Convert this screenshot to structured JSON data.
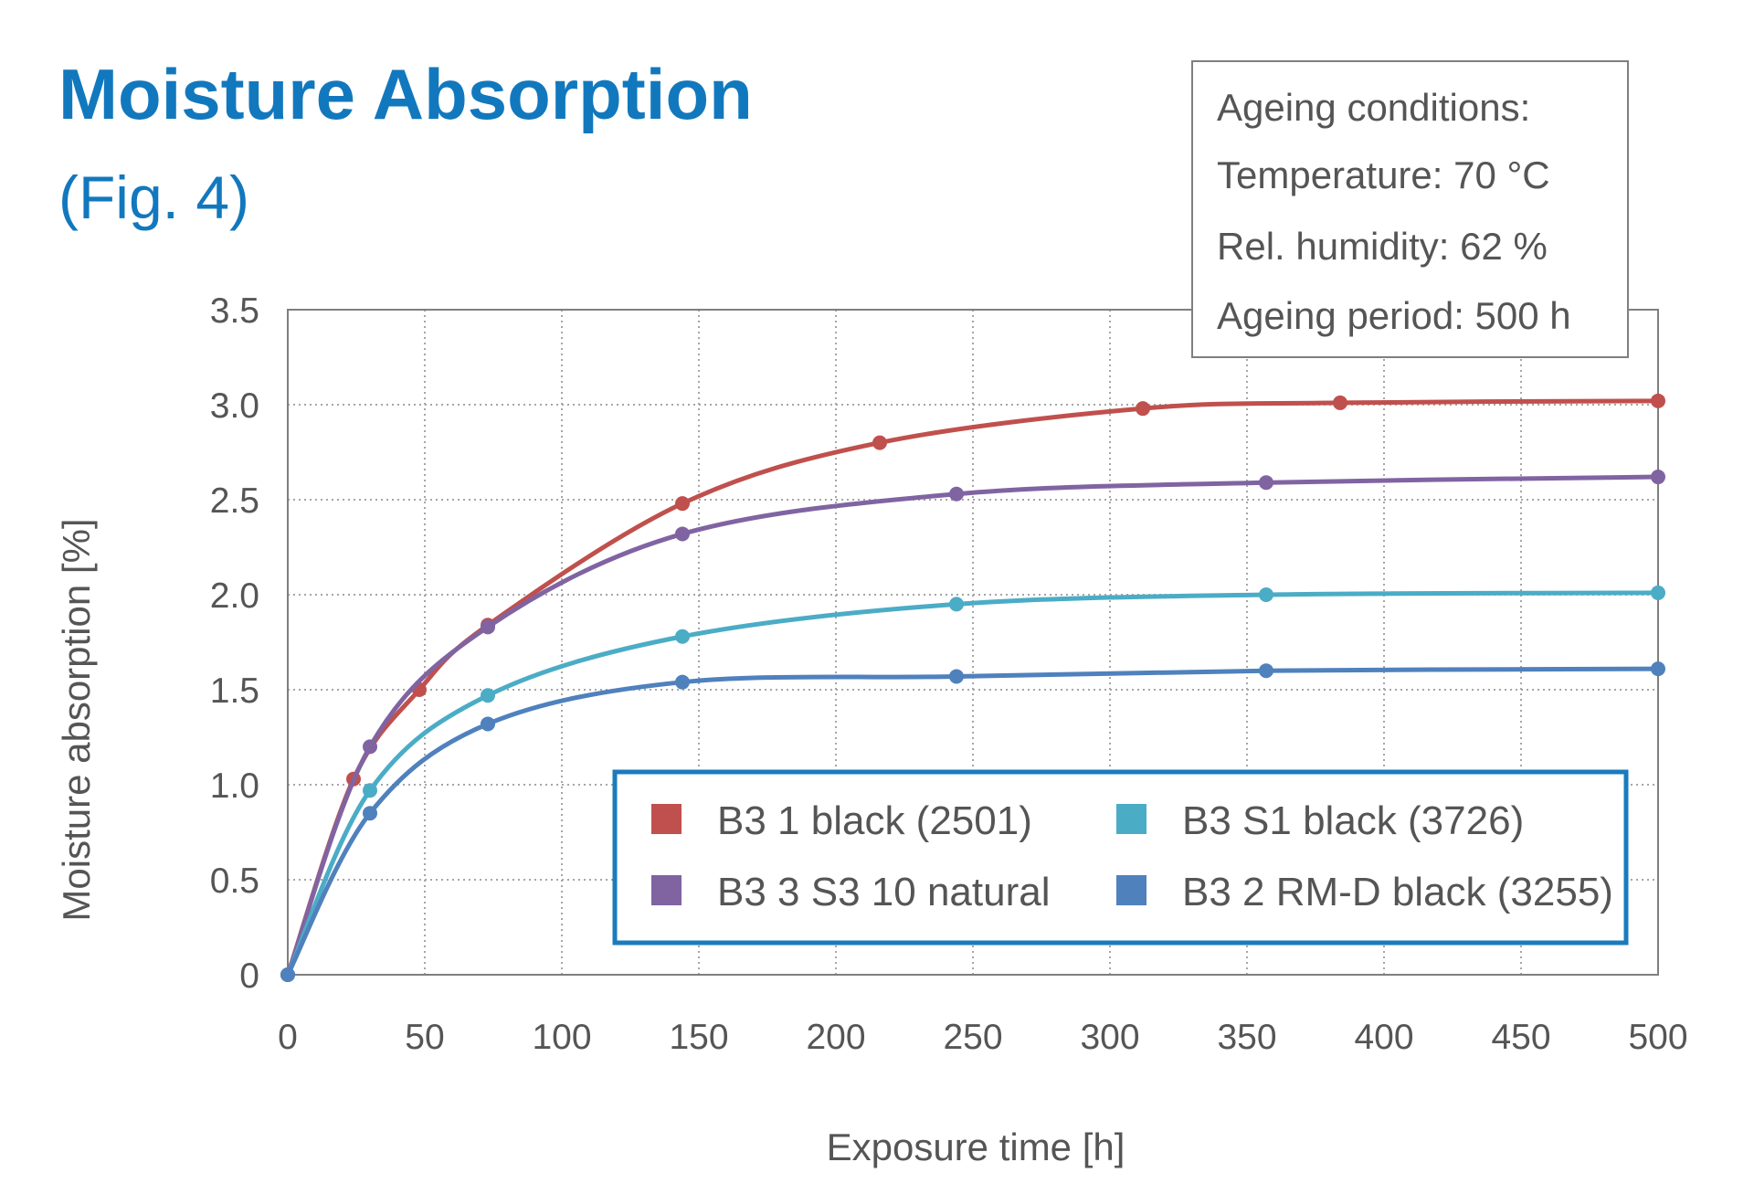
{
  "chart_data": {
    "type": "line",
    "title": "Moisture Absorption",
    "subtitle": "(Fig. 4)",
    "xlabel": "Exposure time [h]",
    "ylabel": "Moisture absorption [%]",
    "xlim": [
      0,
      500
    ],
    "ylim": [
      0,
      3.5
    ],
    "x_ticks": [
      "0",
      "50",
      "100",
      "150",
      "200",
      "250",
      "300",
      "350",
      "400",
      "450",
      "500"
    ],
    "y_ticks": [
      "0",
      "0.5",
      "1.0",
      "1.5",
      "2.0",
      "2.5",
      "3.0",
      "3.5"
    ],
    "grid": "dotted",
    "legend_position": "bottom-right",
    "conditions": {
      "heading": "Ageing conditions:",
      "temperature": "Temperature: 70 °C",
      "humidity": "Rel. humidity: 62 %",
      "period": "Ageing period: 500 h"
    },
    "series": [
      {
        "name": "B3 1 black (2501)",
        "color": "#c0504d",
        "points": [
          [
            0,
            0
          ],
          [
            24,
            1.03
          ],
          [
            48,
            1.5
          ],
          [
            73,
            1.84
          ],
          [
            144,
            2.48
          ],
          [
            216,
            2.8
          ],
          [
            312,
            2.98
          ],
          [
            384,
            3.01
          ],
          [
            500,
            3.02
          ]
        ]
      },
      {
        "name": "B3 3 S3 10 natural",
        "color": "#8064a2",
        "points": [
          [
            0,
            0
          ],
          [
            30,
            1.2
          ],
          [
            73,
            1.83
          ],
          [
            144,
            2.32
          ],
          [
            244,
            2.53
          ],
          [
            357,
            2.59
          ],
          [
            500,
            2.62
          ]
        ]
      },
      {
        "name": "B3 S1 black (3726)",
        "color": "#4bacc6",
        "points": [
          [
            0,
            0
          ],
          [
            30,
            0.97
          ],
          [
            73,
            1.47
          ],
          [
            144,
            1.78
          ],
          [
            244,
            1.95
          ],
          [
            357,
            2.0
          ],
          [
            500,
            2.01
          ]
        ]
      },
      {
        "name": "B3 2 RM-D black (3255)",
        "color": "#4f81bd",
        "points": [
          [
            0,
            0
          ],
          [
            30,
            0.85
          ],
          [
            73,
            1.32
          ],
          [
            144,
            1.54
          ],
          [
            244,
            1.57
          ],
          [
            357,
            1.6
          ],
          [
            500,
            1.61
          ]
        ]
      }
    ]
  }
}
